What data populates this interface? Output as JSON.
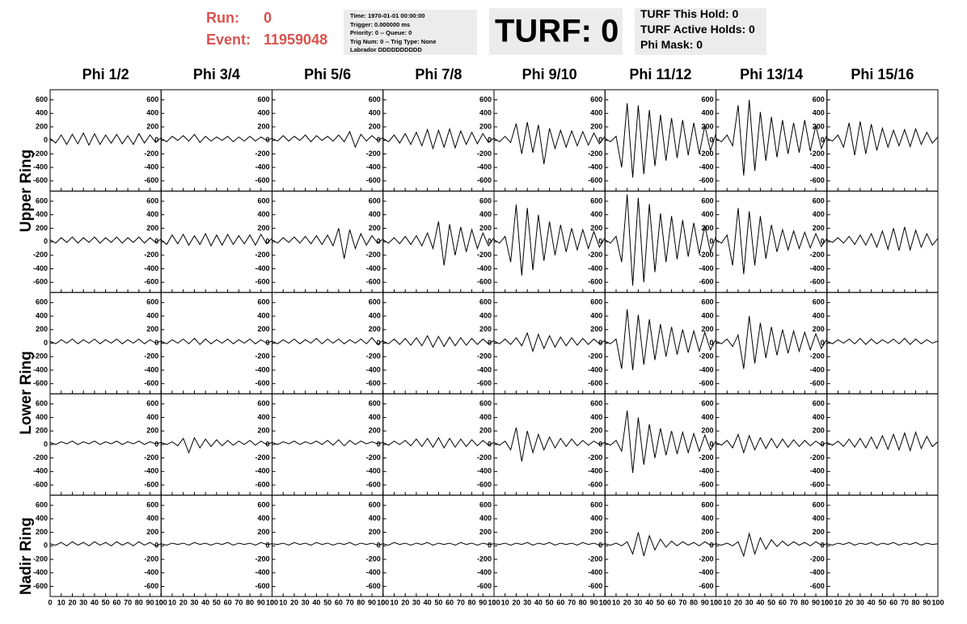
{
  "header": {
    "run_label": "Run:",
    "run": "0",
    "event_label": "Event:",
    "event": "11959048",
    "info": [
      "Time: 1970-01-01 00:00:00",
      "Trigger: 0.000000 ms",
      "Priority: 0 -- Queue: 0",
      "Trig Num: 0 -- Trig Type: None",
      "Labrador DDDDDDDDDD"
    ],
    "turf": "TURF: 0",
    "turf_info": [
      "TURF This Hold: 0",
      "TURF Active Holds: 0",
      "Phi Mask: 0"
    ]
  },
  "columns": [
    "Phi 1/2",
    "Phi 3/4",
    "Phi 5/6",
    "Phi 7/8",
    "Phi 9/10",
    "Phi 11/12",
    "Phi 13/14",
    "Phi 15/16"
  ],
  "row_labels": [
    "Upper Ring",
    "Lower Ring",
    "Nadir Ring"
  ],
  "chart_data": {
    "type": "line",
    "color": "#000000",
    "x": [
      0,
      5,
      10,
      15,
      20,
      25,
      30,
      35,
      40,
      45,
      50,
      55,
      60,
      65,
      70,
      75,
      80,
      85,
      90,
      95,
      100
    ],
    "xlim": [
      0,
      100
    ],
    "xticks": [
      0,
      10,
      20,
      30,
      40,
      50,
      60,
      70,
      80,
      90,
      100
    ],
    "ylim": [
      -750,
      750
    ],
    "yticks": [
      -600,
      -400,
      -200,
      0,
      200,
      400,
      600
    ],
    "series": [
      {
        "values": [
          30,
          -40,
          80,
          -60,
          90,
          -50,
          110,
          -70,
          100,
          -60,
          80,
          -40,
          90,
          -50,
          70,
          -60,
          100,
          -40,
          80,
          -30,
          40
        ]
      },
      {
        "values": [
          30,
          -20,
          60,
          0,
          70,
          -10,
          90,
          -30,
          60,
          -10,
          50,
          0,
          60,
          -20,
          50,
          -10,
          60,
          -10,
          50,
          0,
          30
        ]
      },
      {
        "values": [
          30,
          -10,
          70,
          -10,
          60,
          0,
          80,
          -20,
          70,
          0,
          60,
          -10,
          80,
          -20,
          130,
          -100,
          90,
          -10,
          70,
          0,
          40
        ]
      },
      {
        "values": [
          30,
          -20,
          80,
          -40,
          100,
          -60,
          120,
          -80,
          160,
          -120,
          150,
          -100,
          170,
          -110,
          140,
          -60,
          120,
          -50,
          100,
          -30,
          40
        ]
      },
      {
        "values": [
          30,
          -20,
          60,
          -30,
          250,
          -200,
          270,
          -180,
          230,
          -350,
          180,
          -120,
          150,
          -100,
          140,
          -80,
          130,
          -70,
          110,
          -50,
          60
        ]
      },
      {
        "values": [
          30,
          -20,
          60,
          -400,
          550,
          -550,
          520,
          -500,
          450,
          -380,
          380,
          -300,
          330,
          -260,
          300,
          -220,
          260,
          -200,
          220,
          -150,
          100
        ]
      },
      {
        "values": [
          30,
          -20,
          80,
          -80,
          520,
          -520,
          600,
          -450,
          420,
          -300,
          350,
          -250,
          300,
          -200,
          260,
          -180,
          300,
          -160,
          220,
          -120,
          80
        ]
      },
      {
        "values": [
          30,
          -10,
          80,
          -100,
          260,
          -220,
          280,
          -200,
          240,
          -150,
          180,
          -100,
          150,
          -80,
          160,
          -90,
          170,
          -60,
          120,
          -40,
          50
        ]
      },
      {
        "values": [
          30,
          -20,
          60,
          -10,
          70,
          -20,
          60,
          -10,
          70,
          -20,
          60,
          -10,
          70,
          -20,
          60,
          -10,
          70,
          -20,
          60,
          -10,
          40
        ]
      },
      {
        "values": [
          30,
          -40,
          100,
          -30,
          110,
          -50,
          90,
          -40,
          120,
          -60,
          100,
          -50,
          110,
          -40,
          90,
          -30,
          100,
          -50,
          110,
          -30,
          50
        ]
      },
      {
        "values": [
          30,
          -20,
          60,
          -10,
          70,
          -20,
          80,
          -30,
          90,
          -40,
          100,
          -60,
          200,
          -250,
          180,
          -100,
          120,
          -50,
          90,
          -20,
          40
        ]
      },
      {
        "values": [
          30,
          -20,
          60,
          -30,
          80,
          -40,
          90,
          -60,
          130,
          -100,
          300,
          -350,
          260,
          -200,
          220,
          -150,
          180,
          -100,
          130,
          -60,
          60
        ]
      },
      {
        "values": [
          30,
          -20,
          80,
          -300,
          550,
          -500,
          500,
          -420,
          400,
          -280,
          300,
          -200,
          250,
          -150,
          200,
          -120,
          180,
          -100,
          150,
          -80,
          60
        ]
      },
      {
        "values": [
          30,
          -20,
          80,
          -300,
          700,
          -650,
          650,
          -600,
          560,
          -450,
          420,
          -300,
          380,
          -260,
          320,
          -220,
          280,
          -180,
          240,
          -150,
          80
        ]
      },
      {
        "values": [
          30,
          -20,
          100,
          -350,
          500,
          -480,
          450,
          -350,
          380,
          -250,
          250,
          -150,
          180,
          -120,
          160,
          -100,
          140,
          -90,
          120,
          -70,
          50
        ]
      },
      {
        "values": [
          30,
          -10,
          60,
          -20,
          80,
          -40,
          100,
          -50,
          120,
          -80,
          160,
          -110,
          200,
          -130,
          220,
          -120,
          170,
          -80,
          120,
          -50,
          50
        ]
      },
      {
        "values": [
          30,
          -10,
          50,
          0,
          60,
          -10,
          50,
          0,
          60,
          -10,
          50,
          0,
          60,
          -10,
          50,
          0,
          60,
          -10,
          50,
          0,
          30
        ]
      },
      {
        "values": [
          30,
          -10,
          50,
          0,
          60,
          -10,
          70,
          -20,
          60,
          -10,
          50,
          0,
          60,
          -10,
          50,
          0,
          60,
          -10,
          50,
          0,
          30
        ]
      },
      {
        "values": [
          30,
          -10,
          50,
          0,
          60,
          -10,
          50,
          0,
          70,
          -10,
          60,
          0,
          60,
          -10,
          50,
          0,
          60,
          -10,
          80,
          -20,
          40
        ]
      },
      {
        "values": [
          30,
          -10,
          60,
          -20,
          70,
          -30,
          80,
          -40,
          110,
          -60,
          100,
          -50,
          90,
          -40,
          80,
          -30,
          70,
          -20,
          60,
          -10,
          40
        ]
      },
      {
        "values": [
          30,
          -10,
          60,
          -20,
          80,
          -40,
          150,
          -120,
          130,
          -80,
          110,
          -60,
          90,
          -40,
          80,
          -30,
          70,
          -20,
          60,
          -10,
          40
        ]
      },
      {
        "values": [
          30,
          -10,
          60,
          -380,
          500,
          -400,
          420,
          -320,
          350,
          -250,
          280,
          -200,
          240,
          -170,
          200,
          -140,
          180,
          -120,
          160,
          -100,
          60
        ]
      },
      {
        "values": [
          30,
          -10,
          60,
          -50,
          120,
          -380,
          400,
          -300,
          300,
          -220,
          240,
          -180,
          200,
          -150,
          180,
          -120,
          160,
          -100,
          140,
          -80,
          60
        ]
      },
      {
        "values": [
          30,
          -10,
          50,
          0,
          60,
          -10,
          70,
          -20,
          60,
          -10,
          50,
          0,
          60,
          -10,
          70,
          -20,
          60,
          -10,
          50,
          0,
          30
        ]
      },
      {
        "values": [
          30,
          0,
          40,
          10,
          50,
          0,
          40,
          10,
          50,
          0,
          40,
          10,
          50,
          0,
          40,
          10,
          50,
          0,
          40,
          10,
          30
        ]
      },
      {
        "values": [
          30,
          0,
          40,
          -20,
          90,
          -120,
          100,
          -50,
          80,
          -30,
          70,
          -20,
          60,
          -10,
          50,
          0,
          60,
          -10,
          50,
          0,
          30
        ]
      },
      {
        "values": [
          30,
          0,
          40,
          10,
          50,
          0,
          40,
          10,
          50,
          0,
          60,
          -10,
          70,
          -20,
          60,
          0,
          50,
          10,
          40,
          10,
          30
        ]
      },
      {
        "values": [
          30,
          -10,
          50,
          0,
          60,
          -20,
          80,
          -30,
          90,
          -40,
          100,
          -50,
          90,
          -40,
          80,
          -30,
          70,
          -20,
          60,
          -10,
          30
        ]
      },
      {
        "values": [
          30,
          -10,
          50,
          -80,
          250,
          -250,
          200,
          -120,
          150,
          -80,
          110,
          -50,
          90,
          -30,
          80,
          -20,
          60,
          -10,
          50,
          0,
          30
        ]
      },
      {
        "values": [
          30,
          -10,
          60,
          -100,
          500,
          -420,
          400,
          -300,
          300,
          -200,
          240,
          -160,
          200,
          -140,
          180,
          -120,
          160,
          -100,
          140,
          -80,
          50
        ]
      },
      {
        "values": [
          30,
          -10,
          60,
          -50,
          150,
          -120,
          130,
          -80,
          100,
          -60,
          90,
          -50,
          80,
          -40,
          70,
          -30,
          60,
          -20,
          50,
          -10,
          30
        ]
      },
      {
        "values": [
          30,
          -10,
          50,
          -30,
          80,
          -40,
          90,
          -50,
          110,
          -60,
          130,
          -70,
          150,
          -80,
          170,
          -90,
          180,
          -60,
          120,
          -30,
          40
        ]
      },
      {
        "values": [
          30,
          10,
          50,
          0,
          60,
          10,
          50,
          0,
          60,
          10,
          50,
          0,
          60,
          10,
          50,
          0,
          60,
          10,
          50,
          0,
          30
        ]
      },
      {
        "values": [
          30,
          10,
          40,
          20,
          40,
          10,
          50,
          20,
          40,
          10,
          40,
          20,
          50,
          10,
          40,
          20,
          40,
          10,
          50,
          20,
          30
        ]
      },
      {
        "values": [
          30,
          20,
          40,
          10,
          50,
          20,
          40,
          10,
          50,
          20,
          40,
          10,
          40,
          20,
          50,
          10,
          40,
          20,
          40,
          10,
          30
        ]
      },
      {
        "values": [
          30,
          10,
          50,
          20,
          40,
          10,
          40,
          20,
          50,
          10,
          40,
          20,
          40,
          10,
          50,
          20,
          40,
          10,
          40,
          20,
          30
        ]
      },
      {
        "values": [
          30,
          20,
          40,
          10,
          40,
          20,
          50,
          10,
          40,
          20,
          50,
          10,
          40,
          20,
          40,
          10,
          50,
          20,
          40,
          10,
          30
        ]
      },
      {
        "values": [
          30,
          10,
          40,
          0,
          60,
          -120,
          200,
          -150,
          150,
          -60,
          100,
          -20,
          70,
          0,
          60,
          10,
          50,
          0,
          60,
          10,
          30
        ]
      },
      {
        "values": [
          30,
          10,
          40,
          0,
          60,
          -150,
          180,
          -120,
          120,
          -50,
          90,
          -10,
          70,
          0,
          60,
          10,
          50,
          0,
          60,
          10,
          30
        ]
      },
      {
        "values": [
          30,
          10,
          40,
          20,
          50,
          10,
          40,
          20,
          50,
          10,
          40,
          20,
          50,
          10,
          40,
          20,
          50,
          10,
          40,
          20,
          30
        ]
      }
    ]
  }
}
